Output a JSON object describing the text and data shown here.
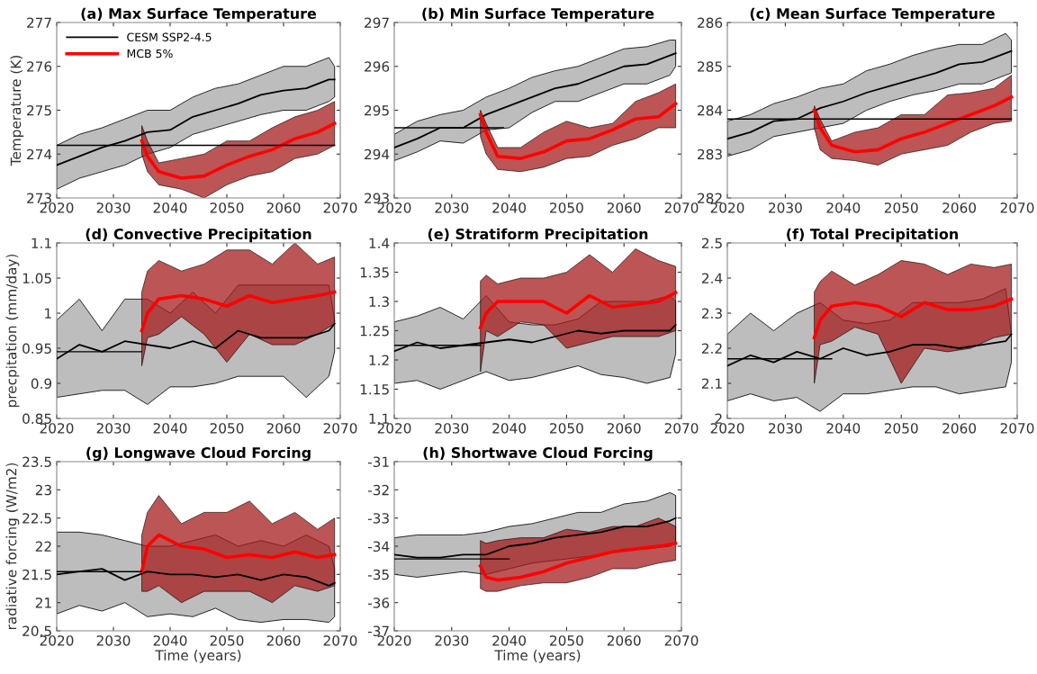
{
  "chart_data": [
    {
      "type": "line",
      "title": "(a) Max Surface Temperature",
      "ylabel": "Temperature (K)",
      "xlim": [
        2020,
        2070
      ],
      "xticks": [
        2020,
        2030,
        2040,
        2050,
        2060,
        2070
      ],
      "ylim": [
        273,
        277
      ],
      "yticks": [
        273,
        274,
        275,
        276,
        277
      ],
      "legend": "top left",
      "series": [
        {
          "name": "CESM SSP2-4.5",
          "color": "#000000",
          "x": [
            2020,
            2024,
            2028,
            2032,
            2036,
            2040,
            2044,
            2048,
            2052,
            2056,
            2060,
            2064,
            2068,
            2069
          ],
          "values": [
            273.75,
            273.95,
            274.15,
            274.3,
            274.5,
            274.55,
            274.85,
            275.0,
            275.15,
            275.35,
            275.45,
            275.5,
            275.7,
            275.7
          ],
          "upper": [
            274.2,
            274.45,
            274.6,
            274.8,
            275.0,
            275.0,
            275.3,
            275.5,
            275.6,
            275.8,
            276.0,
            276.0,
            276.2,
            276.0
          ],
          "lower": [
            273.2,
            273.45,
            273.6,
            273.75,
            274.0,
            274.15,
            274.45,
            274.6,
            274.75,
            274.9,
            275.0,
            275.0,
            275.2,
            275.3
          ]
        },
        {
          "name": "MCB 5%",
          "color": "#ff0000",
          "x": [
            2035,
            2036,
            2038,
            2042,
            2046,
            2050,
            2054,
            2058,
            2062,
            2066,
            2069
          ],
          "values": [
            274.3,
            273.95,
            273.6,
            273.45,
            273.5,
            273.75,
            273.95,
            274.1,
            274.35,
            274.5,
            274.7
          ],
          "upper": [
            274.65,
            274.3,
            273.8,
            273.9,
            274.0,
            274.3,
            274.3,
            274.6,
            274.85,
            275.0,
            275.2
          ],
          "lower": [
            274.0,
            273.6,
            273.3,
            273.2,
            273.0,
            273.3,
            273.5,
            273.6,
            273.9,
            274.0,
            274.2
          ]
        },
        {
          "color": "#000000",
          "x": [
            2020,
            2069
          ],
          "values": [
            274.2,
            274.2
          ]
        }
      ]
    },
    {
      "type": "line",
      "title": "(b) Min Surface Temperature",
      "xlim": [
        2020,
        2070
      ],
      "xticks": [
        2020,
        2030,
        2040,
        2050,
        2060,
        2070
      ],
      "ylim": [
        293,
        297
      ],
      "yticks": [
        293,
        294,
        295,
        296,
        297
      ],
      "series": [
        {
          "color": "#000000",
          "x": [
            2020,
            2024,
            2028,
            2032,
            2036,
            2040,
            2044,
            2048,
            2052,
            2056,
            2060,
            2064,
            2068,
            2069
          ],
          "values": [
            294.15,
            294.35,
            294.6,
            294.6,
            294.9,
            295.1,
            295.3,
            295.5,
            295.6,
            295.8,
            296.0,
            296.05,
            296.25,
            296.3
          ],
          "upper": [
            294.45,
            294.75,
            294.9,
            295.0,
            295.3,
            295.5,
            295.75,
            295.9,
            296.0,
            296.2,
            296.4,
            296.45,
            296.6,
            296.6
          ],
          "lower": [
            293.85,
            294.05,
            294.3,
            294.25,
            294.55,
            294.6,
            294.95,
            295.2,
            295.2,
            295.4,
            295.6,
            295.6,
            295.8,
            296.0
          ]
        },
        {
          "color": "#ff0000",
          "x": [
            2035,
            2036,
            2038,
            2042,
            2046,
            2050,
            2054,
            2058,
            2062,
            2066,
            2069
          ],
          "values": [
            294.9,
            294.5,
            293.95,
            293.9,
            294.05,
            294.3,
            294.35,
            294.55,
            294.8,
            294.85,
            295.15
          ],
          "upper": [
            295.0,
            294.7,
            294.15,
            294.15,
            294.5,
            294.75,
            294.6,
            294.7,
            295.2,
            295.4,
            295.6
          ],
          "lower": [
            294.4,
            294.0,
            293.65,
            293.6,
            293.7,
            293.9,
            293.95,
            294.2,
            294.35,
            294.6,
            294.6
          ]
        },
        {
          "color": "#000000",
          "x": [
            2020,
            2039
          ],
          "values": [
            294.6,
            294.6
          ]
        }
      ]
    },
    {
      "type": "line",
      "title": "(c) Mean Surface Temperature",
      "xlim": [
        2020,
        2070
      ],
      "xticks": [
        2020,
        2030,
        2040,
        2050,
        2060,
        2070
      ],
      "ylim": [
        282,
        286
      ],
      "yticks": [
        282,
        283,
        284,
        285,
        286
      ],
      "series": [
        {
          "color": "#000000",
          "x": [
            2020,
            2024,
            2028,
            2032,
            2036,
            2040,
            2044,
            2048,
            2052,
            2056,
            2060,
            2064,
            2068,
            2069
          ],
          "values": [
            283.35,
            283.5,
            283.75,
            283.8,
            284.05,
            284.2,
            284.4,
            284.55,
            284.7,
            284.85,
            285.05,
            285.1,
            285.3,
            285.35
          ],
          "upper": [
            283.75,
            283.9,
            284.15,
            284.3,
            284.5,
            284.6,
            284.9,
            285.05,
            285.25,
            285.4,
            285.5,
            285.5,
            285.75,
            285.6
          ],
          "lower": [
            282.95,
            283.1,
            283.4,
            283.5,
            283.6,
            283.7,
            284.0,
            284.2,
            284.35,
            284.45,
            284.6,
            284.6,
            284.8,
            284.85
          ]
        },
        {
          "color": "#ff0000",
          "x": [
            2035,
            2036,
            2038,
            2042,
            2046,
            2050,
            2054,
            2058,
            2062,
            2066,
            2069
          ],
          "values": [
            284.0,
            283.6,
            283.2,
            283.05,
            283.1,
            283.35,
            283.5,
            283.7,
            283.9,
            284.1,
            284.3
          ],
          "upper": [
            284.1,
            283.8,
            283.3,
            283.5,
            283.6,
            283.9,
            283.9,
            284.35,
            284.4,
            284.5,
            284.8
          ],
          "lower": [
            283.6,
            283.1,
            282.9,
            282.85,
            282.75,
            283.0,
            283.1,
            283.2,
            283.5,
            283.7,
            283.75
          ]
        },
        {
          "color": "#000000",
          "x": [
            2020,
            2069
          ],
          "values": [
            283.8,
            283.8
          ]
        }
      ]
    },
    {
      "type": "line",
      "title": "(d) Convective Precipitation",
      "ylabel": "precpitation (mm/day)",
      "xlim": [
        2020,
        2070
      ],
      "xticks": [
        2020,
        2030,
        2040,
        2050,
        2060,
        2070
      ],
      "ylim": [
        0.85,
        1.1
      ],
      "yticks": [
        0.85,
        0.9,
        0.95,
        1,
        1.05,
        1.1
      ],
      "series": [
        {
          "color": "#000000",
          "x": [
            2020,
            2024,
            2028,
            2032,
            2036,
            2040,
            2044,
            2048,
            2052,
            2056,
            2060,
            2064,
            2068,
            2069
          ],
          "values": [
            0.935,
            0.955,
            0.945,
            0.96,
            0.955,
            0.95,
            0.96,
            0.95,
            0.975,
            0.965,
            0.965,
            0.965,
            0.975,
            0.985
          ],
          "upper": [
            0.99,
            1.02,
            0.975,
            1.02,
            1.02,
            1.0,
            1.03,
            1.0,
            1.04,
            1.04,
            1.04,
            1.04,
            1.04,
            0.99
          ],
          "lower": [
            0.88,
            0.885,
            0.89,
            0.89,
            0.87,
            0.895,
            0.895,
            0.9,
            0.91,
            0.91,
            0.91,
            0.88,
            0.91,
            0.945
          ]
        },
        {
          "color": "#ff0000",
          "x": [
            2035,
            2036,
            2038,
            2042,
            2046,
            2050,
            2054,
            2058,
            2062,
            2066,
            2069
          ],
          "values": [
            0.975,
            1.0,
            1.02,
            1.025,
            1.02,
            1.01,
            1.025,
            1.015,
            1.02,
            1.025,
            1.03
          ],
          "upper": [
            1.03,
            1.06,
            1.075,
            1.06,
            1.07,
            1.09,
            1.09,
            1.07,
            1.1,
            1.07,
            1.08
          ],
          "lower": [
            0.925,
            0.965,
            0.97,
            0.995,
            0.97,
            0.93,
            0.97,
            0.955,
            0.955,
            0.97,
            0.985
          ]
        },
        {
          "color": "#000000",
          "x": [
            2020,
            2035
          ],
          "values": [
            0.945,
            0.945
          ]
        }
      ]
    },
    {
      "type": "line",
      "title": "(e) Stratiform Precipitation",
      "xlim": [
        2020,
        2070
      ],
      "xticks": [
        2020,
        2030,
        2040,
        2050,
        2060,
        2070
      ],
      "ylim": [
        1.1,
        1.4
      ],
      "yticks": [
        1.1,
        1.15,
        1.2,
        1.25,
        1.3,
        1.35,
        1.4
      ],
      "series": [
        {
          "color": "#000000",
          "x": [
            2020,
            2024,
            2028,
            2032,
            2036,
            2040,
            2044,
            2048,
            2052,
            2056,
            2060,
            2064,
            2068,
            2069
          ],
          "values": [
            1.215,
            1.23,
            1.22,
            1.225,
            1.23,
            1.235,
            1.23,
            1.24,
            1.25,
            1.245,
            1.25,
            1.25,
            1.25,
            1.26
          ],
          "upper": [
            1.265,
            1.275,
            1.29,
            1.27,
            1.31,
            1.265,
            1.26,
            1.26,
            1.27,
            1.3,
            1.3,
            1.3,
            1.31,
            1.3
          ],
          "lower": [
            1.16,
            1.165,
            1.15,
            1.165,
            1.18,
            1.165,
            1.17,
            1.18,
            1.19,
            1.175,
            1.17,
            1.16,
            1.17,
            1.21
          ]
        },
        {
          "color": "#ff0000",
          "x": [
            2035,
            2036,
            2038,
            2042,
            2046,
            2050,
            2054,
            2058,
            2062,
            2066,
            2069
          ],
          "values": [
            1.255,
            1.28,
            1.3,
            1.3,
            1.3,
            1.28,
            1.31,
            1.29,
            1.295,
            1.3,
            1.315
          ],
          "upper": [
            1.335,
            1.345,
            1.33,
            1.34,
            1.34,
            1.35,
            1.38,
            1.35,
            1.39,
            1.37,
            1.36
          ],
          "lower": [
            1.18,
            1.25,
            1.24,
            1.265,
            1.26,
            1.22,
            1.23,
            1.24,
            1.24,
            1.24,
            1.25
          ]
        },
        {
          "color": "#000000",
          "x": [
            2020,
            2035
          ],
          "values": [
            1.225,
            1.225
          ]
        }
      ]
    },
    {
      "type": "line",
      "title": "(f) Total Precipitation",
      "xlim": [
        2020,
        2070
      ],
      "xticks": [
        2020,
        2030,
        2040,
        2050,
        2060,
        2070
      ],
      "ylim": [
        2,
        2.5
      ],
      "yticks": [
        2,
        2.1,
        2.2,
        2.3,
        2.4,
        2.5
      ],
      "series": [
        {
          "color": "#000000",
          "x": [
            2020,
            2024,
            2028,
            2032,
            2036,
            2040,
            2044,
            2048,
            2052,
            2056,
            2060,
            2064,
            2068,
            2069
          ],
          "values": [
            2.15,
            2.18,
            2.16,
            2.19,
            2.17,
            2.2,
            2.18,
            2.19,
            2.21,
            2.21,
            2.2,
            2.21,
            2.22,
            2.24
          ],
          "upper": [
            2.24,
            2.3,
            2.25,
            2.3,
            2.33,
            2.28,
            2.27,
            2.28,
            2.33,
            2.33,
            2.33,
            2.34,
            2.37,
            2.24
          ],
          "lower": [
            2.05,
            2.07,
            2.05,
            2.06,
            2.02,
            2.07,
            2.07,
            2.08,
            2.09,
            2.09,
            2.07,
            2.08,
            2.09,
            2.16
          ]
        },
        {
          "color": "#ff0000",
          "x": [
            2035,
            2036,
            2038,
            2042,
            2046,
            2050,
            2054,
            2058,
            2062,
            2066,
            2069
          ],
          "values": [
            2.23,
            2.28,
            2.32,
            2.33,
            2.32,
            2.29,
            2.33,
            2.31,
            2.31,
            2.32,
            2.34
          ],
          "upper": [
            2.36,
            2.39,
            2.42,
            2.38,
            2.41,
            2.45,
            2.44,
            2.41,
            2.44,
            2.43,
            2.44
          ],
          "lower": [
            2.1,
            2.21,
            2.22,
            2.26,
            2.24,
            2.1,
            2.2,
            2.19,
            2.2,
            2.23,
            2.24
          ]
        },
        {
          "color": "#000000",
          "x": [
            2020,
            2038
          ],
          "values": [
            2.17,
            2.17
          ]
        }
      ]
    },
    {
      "type": "line",
      "title": "(g) Longwave Cloud Forcing",
      "xlabel": "Time (years)",
      "ylabel": "radiative forcing (W/m2)",
      "xlim": [
        2020,
        2070
      ],
      "xticks": [
        2020,
        2030,
        2040,
        2050,
        2060,
        2070
      ],
      "ylim": [
        20.5,
        23.5
      ],
      "yticks": [
        20.5,
        21,
        21.5,
        22,
        22.5,
        23,
        23.5
      ],
      "series": [
        {
          "color": "#000000",
          "x": [
            2020,
            2024,
            2028,
            2032,
            2036,
            2040,
            2044,
            2048,
            2052,
            2056,
            2060,
            2064,
            2068,
            2069
          ],
          "values": [
            21.5,
            21.55,
            21.6,
            21.4,
            21.55,
            21.5,
            21.5,
            21.45,
            21.5,
            21.4,
            21.5,
            21.45,
            21.3,
            21.35
          ],
          "upper": [
            22.25,
            22.25,
            22.2,
            22.1,
            22.0,
            22.0,
            22.1,
            22.2,
            22.0,
            22.1,
            22.0,
            22.2,
            22.0,
            21.6
          ],
          "lower": [
            20.8,
            20.95,
            20.85,
            21.0,
            20.75,
            20.8,
            20.75,
            20.9,
            20.7,
            20.65,
            20.7,
            20.7,
            20.65,
            20.75
          ]
        },
        {
          "color": "#ff0000",
          "x": [
            2035,
            2036,
            2038,
            2042,
            2046,
            2050,
            2054,
            2058,
            2062,
            2066,
            2069
          ],
          "values": [
            21.55,
            22.0,
            22.2,
            22.0,
            21.95,
            21.8,
            21.85,
            21.8,
            21.9,
            21.8,
            21.85
          ],
          "upper": [
            22.2,
            22.6,
            22.9,
            22.4,
            22.6,
            22.6,
            22.8,
            22.4,
            22.6,
            22.3,
            22.5
          ],
          "lower": [
            21.2,
            21.2,
            21.3,
            21.0,
            21.2,
            21.2,
            21.2,
            21.0,
            21.3,
            21.2,
            21.3
          ]
        },
        {
          "color": "#000000",
          "x": [
            2020,
            2035
          ],
          "values": [
            21.55,
            21.55
          ]
        }
      ]
    },
    {
      "type": "line",
      "title": "(h) Shortwave Cloud Forcing",
      "xlabel": "Time (years)",
      "xlim": [
        2020,
        2070
      ],
      "xticks": [
        2020,
        2030,
        2040,
        2050,
        2060,
        2070
      ],
      "ylim": [
        -37,
        -31
      ],
      "yticks": [
        -37,
        -36,
        -35,
        -34,
        -33,
        -32,
        -31
      ],
      "series": [
        {
          "color": "#000000",
          "x": [
            2020,
            2024,
            2028,
            2032,
            2036,
            2040,
            2044,
            2048,
            2052,
            2056,
            2060,
            2064,
            2068,
            2069
          ],
          "values": [
            -34.3,
            -34.4,
            -34.4,
            -34.3,
            -34.3,
            -34.0,
            -33.9,
            -33.7,
            -33.6,
            -33.5,
            -33.3,
            -33.3,
            -33.1,
            -33.0
          ],
          "upper": [
            -33.7,
            -33.6,
            -33.6,
            -33.6,
            -33.5,
            -33.3,
            -33.2,
            -33.0,
            -32.8,
            -32.8,
            -32.5,
            -32.4,
            -32.1,
            -32.2
          ],
          "lower": [
            -35.0,
            -35.1,
            -35.0,
            -34.9,
            -35.0,
            -34.8,
            -34.6,
            -34.5,
            -34.4,
            -34.3,
            -34.1,
            -34.1,
            -34.0,
            -33.9
          ]
        },
        {
          "color": "#ff0000",
          "x": [
            2035,
            2036,
            2038,
            2042,
            2046,
            2050,
            2054,
            2058,
            2062,
            2066,
            2069
          ],
          "values": [
            -34.7,
            -35.1,
            -35.2,
            -35.1,
            -34.9,
            -34.6,
            -34.4,
            -34.2,
            -34.1,
            -34.0,
            -33.9
          ],
          "upper": [
            -33.8,
            -33.9,
            -33.8,
            -33.7,
            -33.7,
            -33.4,
            -33.5,
            -33.3,
            -33.3,
            -33.0,
            -33.3
          ],
          "lower": [
            -35.5,
            -35.6,
            -35.6,
            -35.4,
            -35.3,
            -35.3,
            -35.1,
            -34.8,
            -34.8,
            -34.6,
            -34.5
          ]
        },
        {
          "color": "#000000",
          "x": [
            2020,
            2040
          ],
          "values": [
            -34.45,
            -34.45
          ]
        }
      ]
    }
  ]
}
